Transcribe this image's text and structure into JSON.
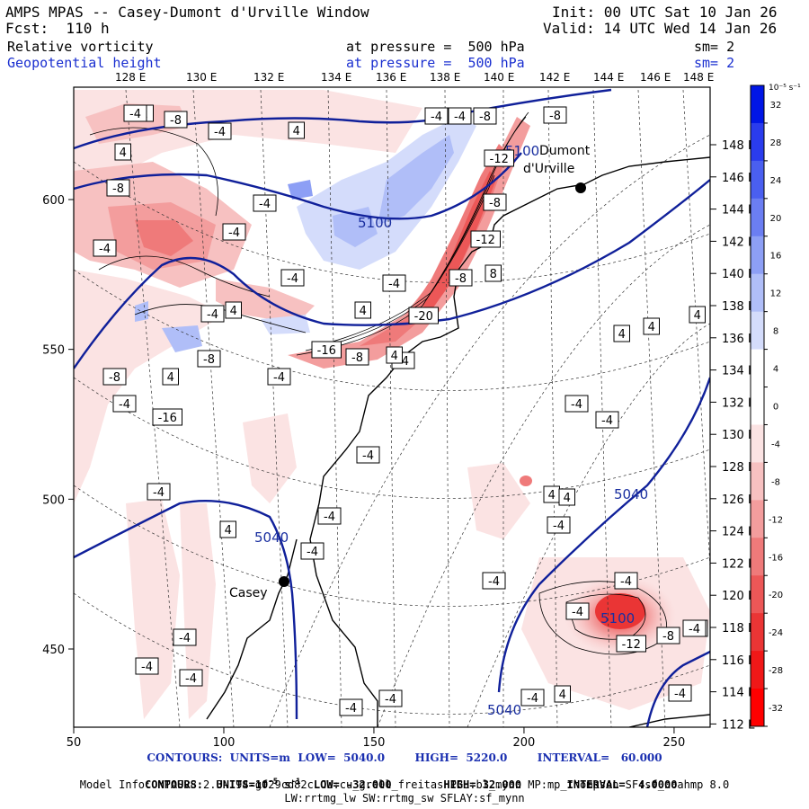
{
  "header": {
    "model": "AMPS MPAS -- Casey-Dumont d'Urville Window",
    "init": "Init: 00 UTC Sat 10 Jan 26",
    "fcst": "Fcst:  110 h",
    "valid": "Valid: 14 UTC Wed 14 Jan 26",
    "field1_name": "Relative vorticity",
    "field1_level": "at pressure =  500 hPa",
    "field1_sm": "sm= 2",
    "field2_name": "Geopotential height",
    "field2_level": "at pressure =  500 hPa",
    "field2_sm": "sm= 2"
  },
  "map": {
    "top_lon_labels": [
      "128 E",
      "130 E",
      "132 E",
      "134 E",
      "136 E",
      "138 E",
      "140 E",
      "142 E",
      "144 E",
      "146 E",
      "148 E"
    ],
    "right_lon_labels": [
      "148 E",
      "146 E",
      "144 E",
      "142 E",
      "140 E",
      "138 E",
      "136 E",
      "134 E",
      "132 E",
      "130 E",
      "128 E",
      "126 E",
      "124 E",
      "122 E",
      "120 E",
      "118 E",
      "116 E",
      "114 E",
      "112 E"
    ],
    "x_axis_ticks": [
      "50",
      "100",
      "150",
      "200",
      "250"
    ],
    "y_axis_ticks": [
      "600",
      "550",
      "500",
      "450"
    ],
    "stations": [
      {
        "name": "Casey"
      },
      {
        "name": "Dumont\nd'Urville"
      }
    ],
    "height_contour_labels": [
      "5100",
      "5040",
      "5040",
      "5040",
      "5100",
      "5100"
    ],
    "vort_labels": [
      "-12",
      "-8",
      "-4",
      "4",
      "4",
      "-4",
      "-4",
      "-8",
      "-8",
      "-12",
      "-4",
      "-8",
      "-4",
      "-4",
      "-4",
      "-4",
      "4",
      "-8",
      "-16",
      "-12",
      "-8",
      "4",
      "-20",
      "8",
      "-4",
      "4",
      "-4",
      "-8",
      "-16",
      "-4",
      "-8",
      "-8",
      "-4",
      "-4",
      "-4",
      "4",
      "-4",
      "-4",
      "4",
      "-4",
      "-4",
      "4",
      "4",
      "4",
      "-4",
      "-4",
      "-4",
      "-4",
      "-4",
      "-8",
      "-4",
      "-4",
      "-4",
      "-12",
      "-4",
      "-4",
      "-4",
      "4",
      "4",
      "4",
      "-4",
      "-4",
      "-4"
    ]
  },
  "colorbar": {
    "unit": "10⁻⁵ s⁻¹",
    "labels": [
      "32",
      "28",
      "24",
      "20",
      "16",
      "12",
      "8",
      "4",
      "0",
      "-4",
      "-8",
      "-12",
      "-16",
      "-20",
      "-24",
      "-28",
      "-32"
    ],
    "colors": [
      "#0016e6",
      "#2a3ced",
      "#4a5ff0",
      "#6b7ef2",
      "#8d9ff5",
      "#b0bef8",
      "#d4dcfb",
      "#ffffff",
      "#ffffff",
      "#fbe3e3",
      "#f7c1c1",
      "#f39d9d",
      "#ef7a7a",
      "#ec5757",
      "#ea3535",
      "#f01818",
      "#ff0000"
    ]
  },
  "footer": {
    "line1": "CONTOURS:  UNITS=m  LOW=  5040.0        HIGH=  5220.0        INTERVAL=   60.000",
    "line2_a": "CONTOURS:  UNITS=10",
    "line2_b": "-5",
    "line2_c": " s",
    "line2_d": "-1",
    "line2_e": "  LOW= -32.000        HIGH= 32.000       INTERVAL=  4.0000",
    "line3": "Model Info: MPASv8.2.3-194-gf29cd82c CU:cu_grell_freitas PBL:bl_mynn MP:mp_thompson SF:sf_noahmp 8.0",
    "line4": "LW:rrtmg_lw SW:rrtmg_sw SFLAY:sf_mynn"
  }
}
